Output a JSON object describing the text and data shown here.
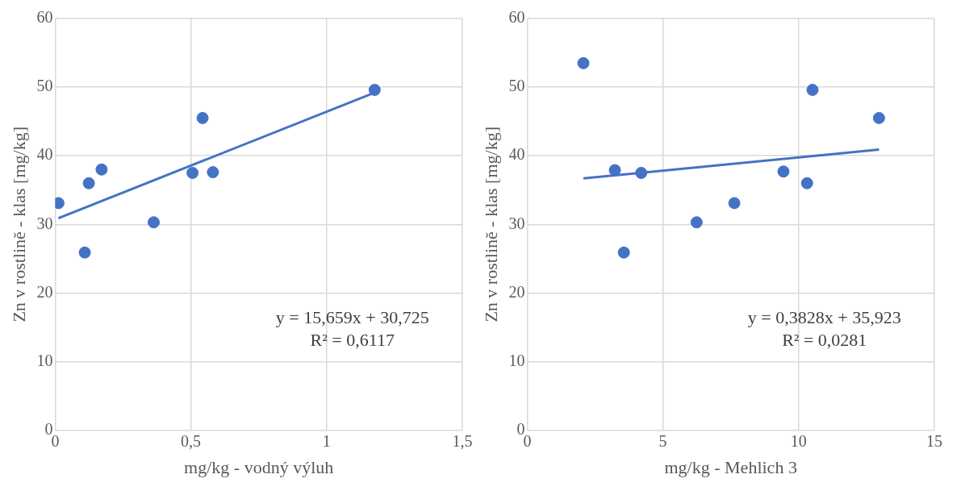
{
  "chart_data": [
    {
      "type": "scatter",
      "xlabel": "mg/kg - vodný výluh",
      "ylabel": "Zn v rostlině - klas [mg/kg]",
      "xlim": [
        0,
        1.5
      ],
      "xticks": [
        0,
        {
          "value": 0.5,
          "label": "0,5"
        },
        1,
        {
          "value": 1.5,
          "label": "1,5"
        }
      ],
      "ylim": [
        0,
        60
      ],
      "yticks": [
        0,
        10,
        20,
        30,
        40,
        50,
        60
      ],
      "grid": true,
      "annotations": [
        "y = 15,659x + 30,725",
        "R² = 0,6117"
      ],
      "series": [
        {
          "type": "scatter",
          "marker": "circle",
          "color": "#4472c4",
          "x": [
            0.012,
            0.109,
            0.124,
            0.171,
            0.363,
            0.506,
            0.543,
            0.581,
            1.177
          ],
          "values": [
            33.1,
            25.9,
            36.0,
            38.0,
            30.3,
            37.5,
            45.5,
            37.6,
            49.6
          ]
        },
        {
          "type": "line",
          "marker": "none",
          "color": "#4472c4",
          "x": [
            0.012,
            1.177
          ],
          "values": [
            30.9,
            49.2
          ]
        }
      ]
    },
    {
      "type": "scatter",
      "xlabel": "mg/kg - Mehlich 3",
      "ylabel": "Zn v rostlině - klas [mg/kg]",
      "xlim": [
        0,
        15
      ],
      "xticks": [
        0,
        5,
        10,
        15
      ],
      "ylim": [
        0,
        60
      ],
      "yticks": [
        0,
        10,
        20,
        30,
        40,
        50,
        60
      ],
      "grid": true,
      "annotations": [
        "y = 0,3828x + 35,923",
        "R² = 0,0281"
      ],
      "series": [
        {
          "type": "scatter",
          "marker": "circle",
          "color": "#4472c4",
          "x": [
            2.07,
            3.23,
            3.56,
            4.2,
            6.24,
            7.63,
            9.44,
            10.31,
            10.51,
            12.96
          ],
          "values": [
            53.5,
            37.9,
            25.9,
            37.5,
            30.3,
            33.1,
            37.7,
            36.0,
            49.6,
            45.5
          ]
        },
        {
          "type": "line",
          "marker": "none",
          "color": "#4472c4",
          "x": [
            2.07,
            12.96
          ],
          "values": [
            36.7,
            40.9
          ]
        }
      ]
    }
  ]
}
